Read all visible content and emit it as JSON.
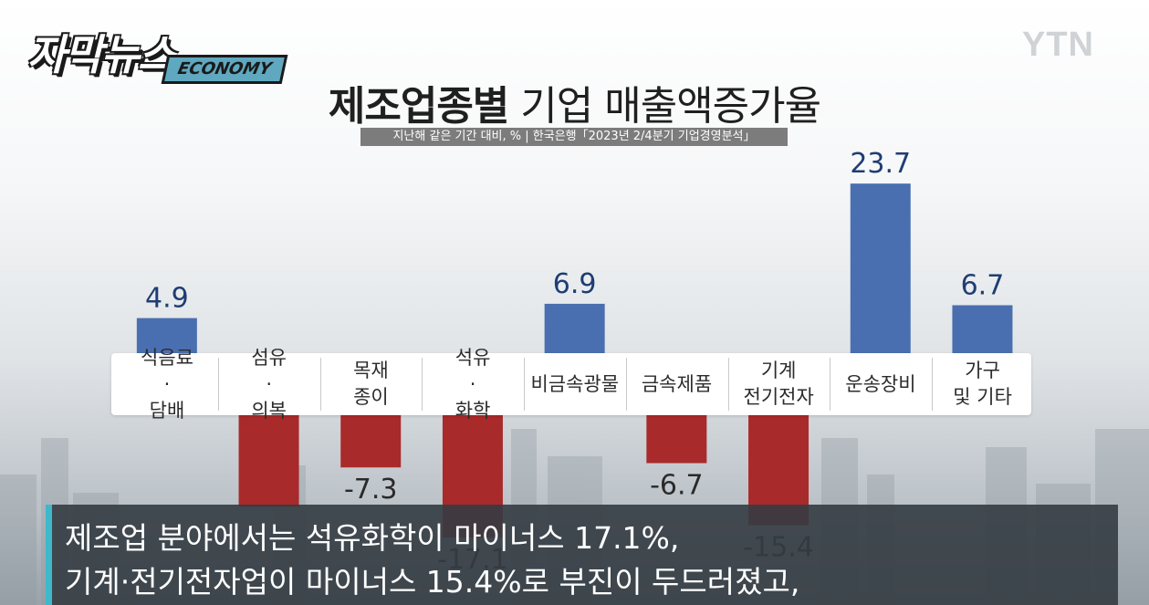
{
  "branding": {
    "show_logo_main": "자막뉴스",
    "show_logo_tag": "ECONOMY",
    "channel_logo": "YTN"
  },
  "header": {
    "title_bold": "제조업종별",
    "title_rest": " 기업 매출액증가율",
    "subtitle": "지난해 같은 기간 대비, % | 한국은행「2023년 2/4분기 기업경영분석」"
  },
  "chart_data": {
    "type": "bar",
    "categories": [
      "식음료\n·\n담배",
      "섬유\n·\n의복",
      "목재\n종이",
      "석유\n·\n화학",
      "비금속광물",
      "금속제품",
      "기계\n전기전자",
      "운송장비",
      "가구\n및 기타"
    ],
    "values": [
      4.9,
      -12.8,
      -7.3,
      -17.1,
      6.9,
      -6.7,
      -15.4,
      23.7,
      6.7
    ],
    "value_labels": [
      "4.9",
      "",
      "-7.3",
      "-17.1",
      "6.9",
      "-6.7",
      "-15.4",
      "23.7",
      "6.7"
    ],
    "ylim": [
      -26,
      26
    ],
    "positive_color": "#4a6fb0",
    "negative_color": "#a92a2a",
    "legend": "none",
    "grid": false
  },
  "caption": {
    "line1": "제조업 분야에서는 석유화학이 마이너스 17.1%,",
    "line2": "기계·전기전자업이 마이너스 15.4%로 부진이 두드러졌고,"
  }
}
